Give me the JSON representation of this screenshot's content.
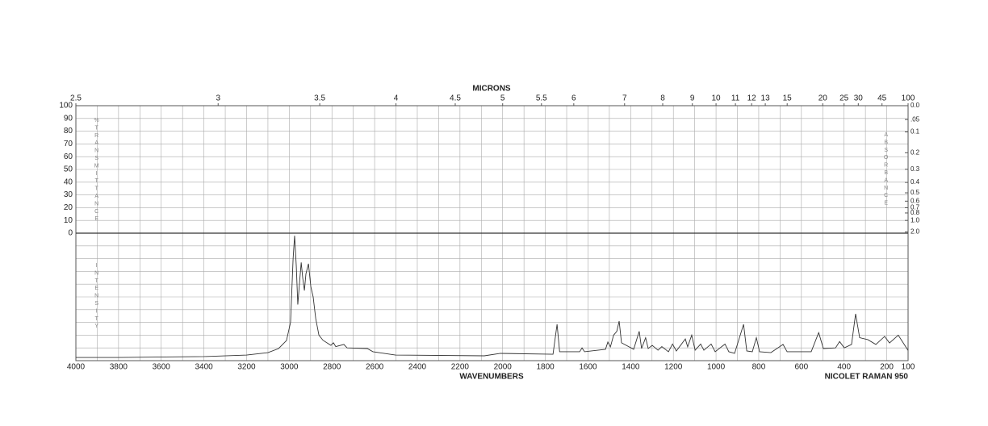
{
  "chart_data": {
    "type": "line",
    "title": "MICRONS",
    "xlabel": "WAVENUMBERS",
    "instrument": "NICOLET RAMAN 950",
    "y_label": "%TRANSMITTANCE",
    "y2_label": "ABSORBANCE",
    "intensity_label": "INTENSITY",
    "xlim": [
      4000,
      100
    ],
    "xticks": [
      4000,
      3800,
      3600,
      3400,
      3200,
      3000,
      2800,
      2600,
      2400,
      2200,
      2000,
      1800,
      1600,
      1400,
      1200,
      1000,
      800,
      600,
      400,
      200,
      100
    ],
    "x2ticks": [
      2.5,
      3,
      3.5,
      4,
      4.5,
      5,
      5.5,
      6,
      7,
      8,
      9,
      10,
      11,
      12,
      13,
      15,
      20,
      25,
      30,
      45,
      100
    ],
    "ylim": [
      0,
      100
    ],
    "yticks": [
      0,
      10,
      20,
      30,
      40,
      50,
      60,
      70,
      80,
      90,
      100
    ],
    "y2ticks": [
      {
        "value": 0,
        "label": "0.0"
      },
      {
        "value": 0.05,
        "label": ".05"
      },
      0.1,
      0.2,
      0.3,
      0.4,
      0.5,
      0.6,
      0.7,
      0.8,
      {
        "value": 1,
        "label": "1.0"
      },
      {
        "value": 2,
        "label": "2.0"
      }
    ],
    "intensity_lim": [
      0,
      100
    ],
    "color": "#333333",
    "x": [
      4000,
      3800,
      3400,
      3200,
      3100,
      3050,
      3013,
      2994,
      2982,
      2975,
      2967,
      2960,
      2952,
      2944,
      2937,
      2929,
      2922,
      2910,
      2899,
      2888,
      2876,
      2861,
      2842,
      2805,
      2793,
      2782,
      2744,
      2729,
      2634,
      2608,
      2502,
      2086,
      2010,
      1764,
      1745,
      1733,
      1639,
      1628,
      1616,
      1518,
      1507,
      1495,
      1480,
      1465,
      1454,
      1443,
      1386,
      1360,
      1349,
      1330,
      1318,
      1299,
      1272,
      1254,
      1223,
      1204,
      1186,
      1144,
      1133,
      1114,
      1098,
      1072,
      1057,
      1023,
      1004,
      958,
      940,
      913,
      871,
      856,
      830,
      811,
      796,
      743,
      686,
      667,
      554,
      519,
      497,
      440,
      421,
      399,
      365,
      346,
      327,
      289,
      251,
      210,
      187,
      146,
      127,
      100
    ],
    "values": [
      2.5,
      2.5,
      3.2,
      4.4,
      6.3,
      9.5,
      15.8,
      30,
      80,
      98,
      74,
      44,
      61,
      77,
      65,
      55,
      68,
      76,
      58,
      50,
      33,
      20,
      16,
      12,
      14,
      11,
      12.7,
      10,
      9.5,
      7,
      4.4,
      3.8,
      5.7,
      5,
      28.5,
      7,
      7,
      10,
      7,
      8.9,
      14.6,
      10.8,
      20,
      23,
      31,
      14,
      8.9,
      23,
      9.5,
      18,
      9.5,
      12,
      8.2,
      11,
      7,
      13,
      7.6,
      17,
      10.8,
      20,
      8.2,
      13,
      8.2,
      13,
      7,
      13,
      7,
      5.7,
      28.5,
      7.6,
      7,
      18,
      7,
      6.3,
      12.7,
      7,
      7,
      22,
      9.5,
      10,
      15,
      10,
      12.7,
      36.7,
      18,
      16.5,
      12.7,
      19,
      13.9,
      20,
      15,
      8
    ]
  }
}
